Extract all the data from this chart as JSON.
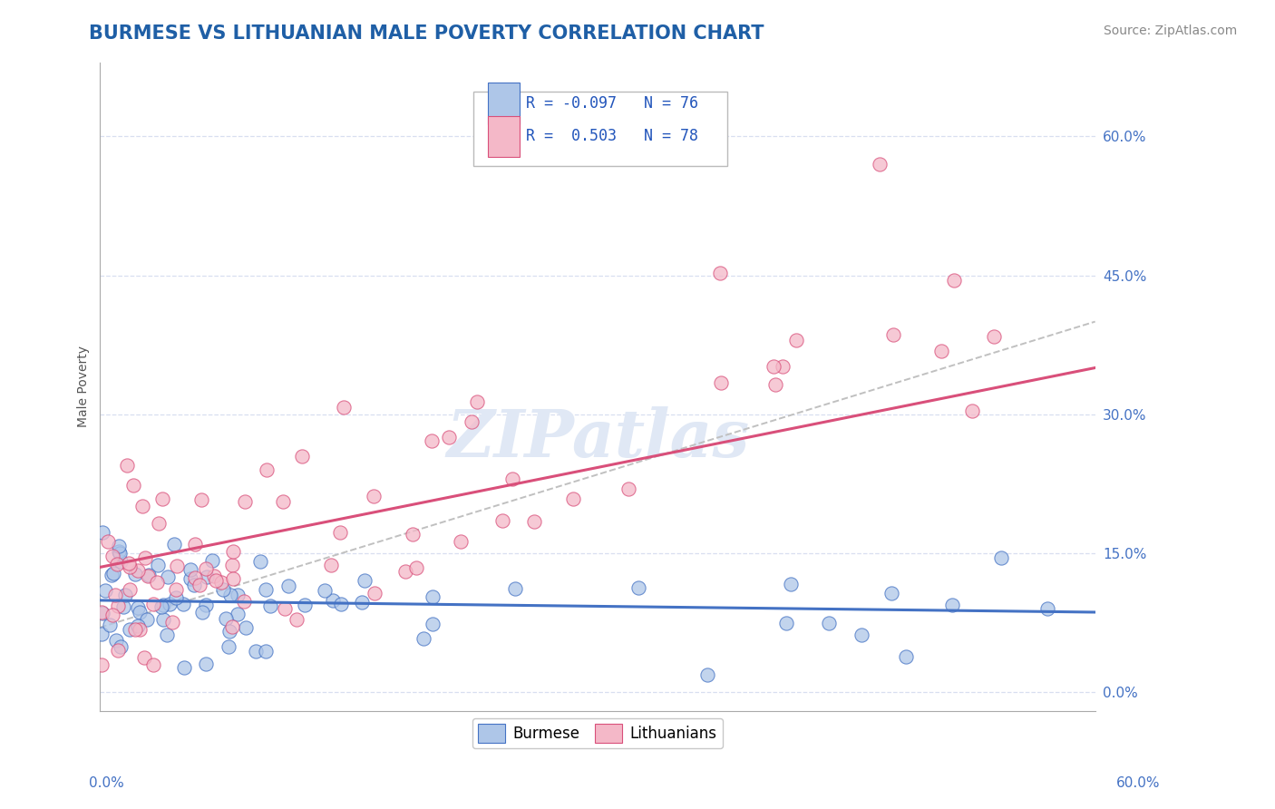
{
  "title": "BURMESE VS LITHUANIAN MALE POVERTY CORRELATION CHART",
  "source": "Source: ZipAtlas.com",
  "ylabel": "Male Poverty",
  "y_ticks_vals": [
    0.0,
    0.15,
    0.3,
    0.45,
    0.6
  ],
  "y_ticks_labels": [
    "0.0%",
    "15.0%",
    "30.0%",
    "45.0%",
    "60.0%"
  ],
  "x_range": [
    0.0,
    0.6
  ],
  "y_range": [
    -0.02,
    0.68
  ],
  "burmese_R": -0.097,
  "burmese_N": 76,
  "lithuanian_R": 0.503,
  "lithuanian_N": 78,
  "burmese_color": "#aec6e8",
  "lithuanian_color": "#f4b8c8",
  "burmese_edge_color": "#4472c4",
  "lithuanian_edge_color": "#d94f7a",
  "burmese_line_color": "#4472c4",
  "lithuanian_line_color": "#d94f7a",
  "dash_line_color": "#c0c0c0",
  "background_color": "#ffffff",
  "grid_color": "#d8dff0",
  "title_color": "#1f5fa6",
  "source_color": "#888888",
  "watermark_color": "#e0e8f5",
  "legend_text_color": "#2255bb",
  "title_fontsize": 15,
  "label_fontsize": 10,
  "tick_fontsize": 11,
  "source_fontsize": 10,
  "legend_fontsize": 12
}
